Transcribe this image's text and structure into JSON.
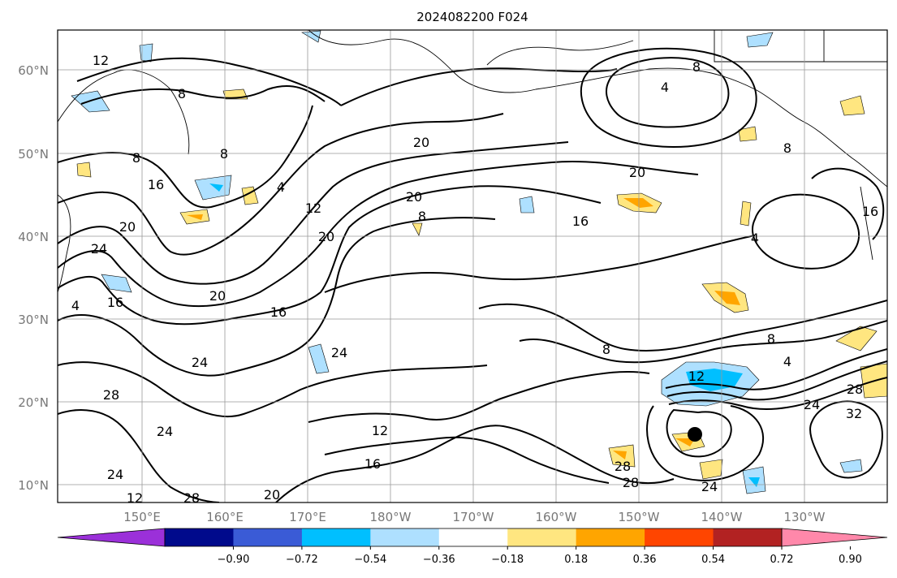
{
  "title": "2024082200 F024",
  "map": {
    "lat_labels": [
      "60°N",
      "50°N",
      "40°N",
      "30°N",
      "20°N",
      "10°N"
    ],
    "lon_labels": [
      "150°E",
      "160°E",
      "170°E",
      "180°W",
      "170°W",
      "160°W",
      "150°W",
      "140°W",
      "130°W"
    ],
    "contour_labels": [
      "12",
      "8",
      "8",
      "4",
      "8",
      "16",
      "20",
      "24",
      "4",
      "12",
      "20",
      "20",
      "20",
      "8",
      "16",
      "20",
      "24",
      "16",
      "12",
      "8",
      "4",
      "8",
      "16",
      "4",
      "8",
      "4",
      "8",
      "12",
      "28",
      "24",
      "32",
      "16",
      "24",
      "28",
      "28",
      "24",
      "24",
      "28",
      "24",
      "20",
      "28",
      "12",
      "16",
      "20"
    ],
    "storm_marker": "tropical-cyclone-center"
  },
  "colorbar": {
    "ticks": [
      "−0.90",
      "−0.72",
      "−0.54",
      "−0.36",
      "−0.18",
      "0.18",
      "0.36",
      "0.54",
      "0.72",
      "0.90"
    ],
    "colors": [
      "#9b30d9",
      "#000a8c",
      "#3a5bd6",
      "#00bfff",
      "#aee0ff",
      "#ffffff",
      "#ffe680",
      "#ffa500",
      "#ff4500",
      "#b22222",
      "#ff88aa"
    ]
  },
  "fill_colors": {
    "light_blue": "#aee0ff",
    "cyan": "#00bfff",
    "light_yellow": "#ffe680",
    "orange": "#ffa500"
  }
}
